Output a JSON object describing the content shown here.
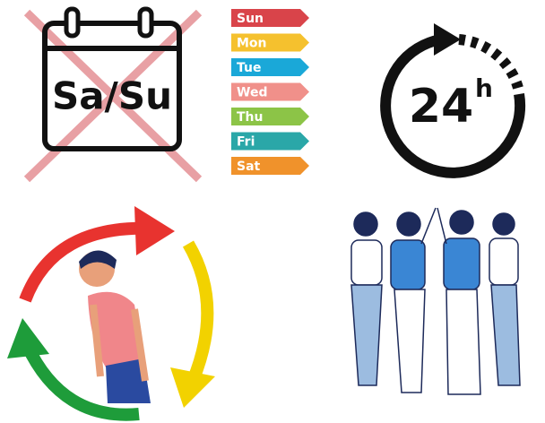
{
  "calendar": {
    "label": "Sa/Su"
  },
  "weekdays": [
    "Sun",
    "Mon",
    "Tue",
    "Wed",
    "Thu",
    "Fri",
    "Sat"
  ],
  "clock": {
    "hours": "24",
    "unit": "h"
  }
}
